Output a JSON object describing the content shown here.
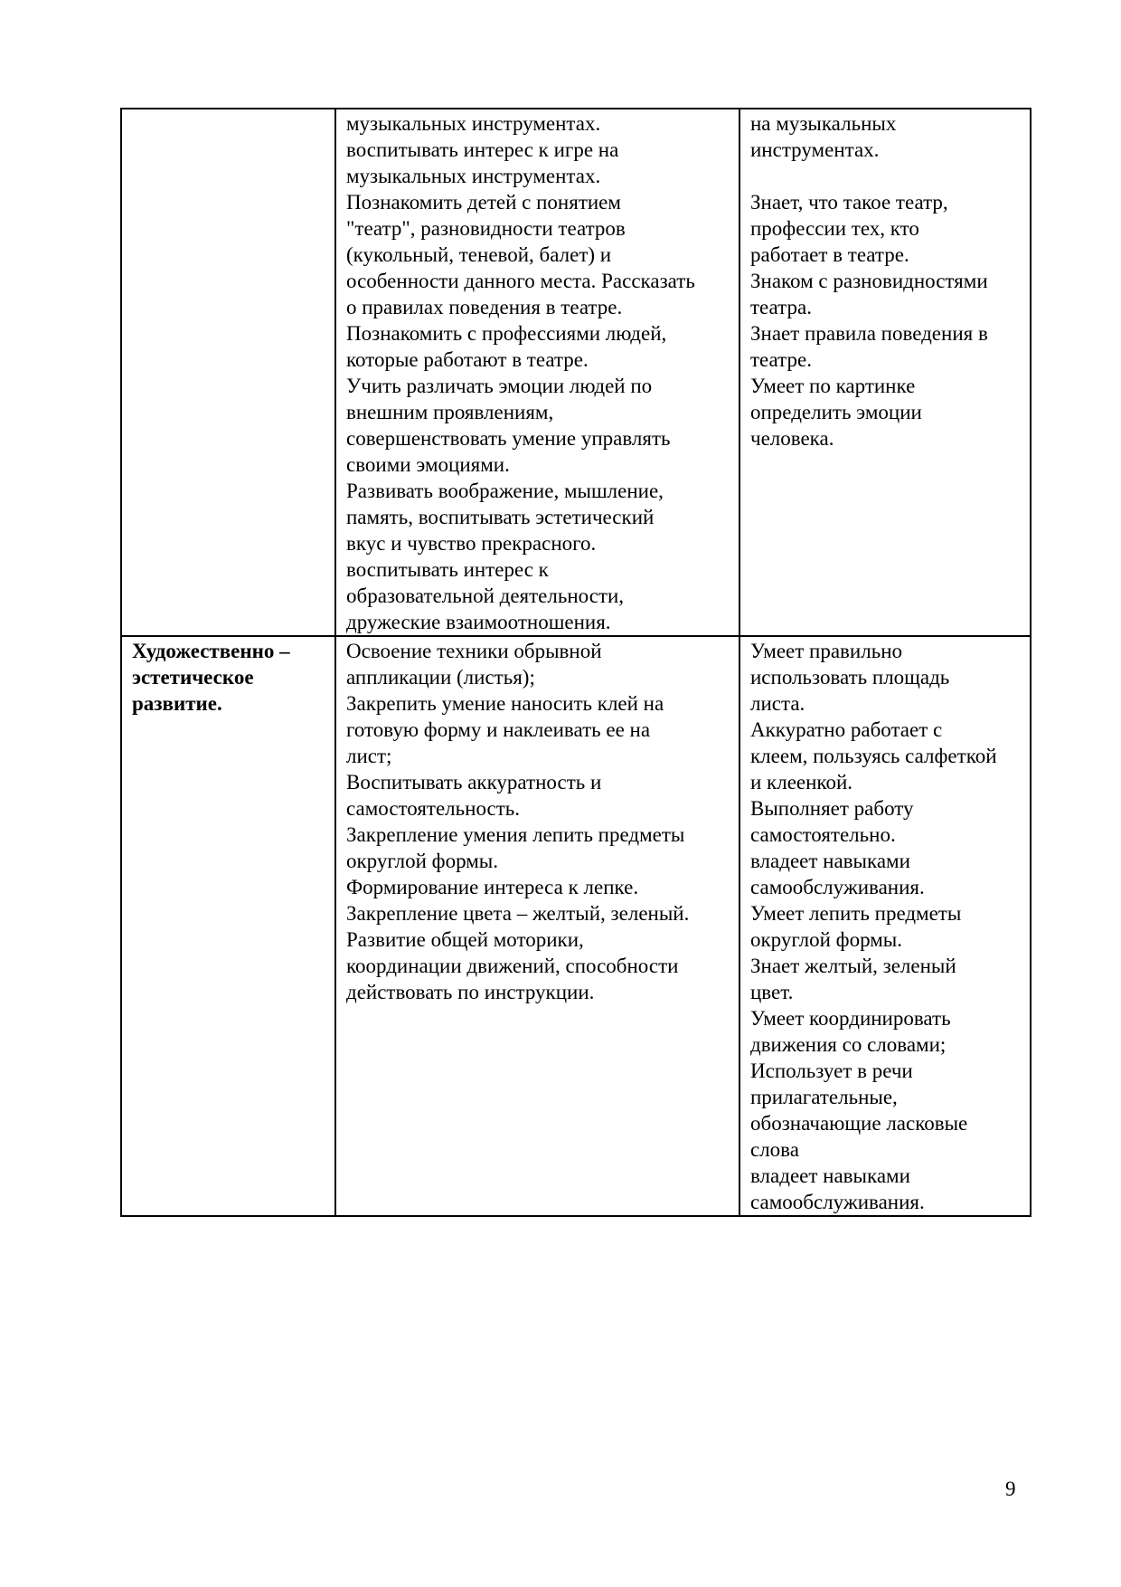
{
  "table": {
    "rows": [
      {
        "area": [],
        "tasks": [
          "музыкальных инструментах.",
          "воспитывать интерес к игре на",
          "музыкальных инструментах.",
          "Познакомить детей с понятием",
          "\"театр\", разновидности театров",
          "(кукольный, теневой, балет) и",
          "особенности данного места.  Рассказать",
          "о правилах поведения в театре.",
          "Познакомить с профессиями людей,",
          "которые работают в театре.",
          "Учить различать эмоции людей по",
          "внешним проявлениям,",
          "совершенствовать умение управлять",
          "своими эмоциями.",
          "Развивать воображение, мышление,",
          "память, воспитывать эстетический",
          "вкус и чувство прекрасного.",
          "воспитывать интерес к",
          "образовательной деятельности,",
          "дружеские взаимоотношения."
        ],
        "results": [
          "на музыкальных",
          "инструментах.",
          "",
          "Знает, что такое театр,",
          "профессии тех, кто",
          "работает в театре.",
          "Знаком с разновидностями",
          "театра.",
          "Знает правила поведения в",
          "театре.",
          "Умеет по картинке",
          "определить эмоции",
          "человека."
        ]
      },
      {
        "area": [
          "Художественно –",
          "эстетическое",
          "развитие."
        ],
        "tasks": [
          "Освоение техники обрывной",
          "аппликации (листья);",
          "Закрепить умение наносить клей на",
          "готовую форму и наклеивать ее на",
          "лист;",
          "Воспитывать аккуратность и",
          "самостоятельность.",
          "Закрепление умения лепить предметы",
          "округлой формы.",
          "Формирование интереса к лепке.",
          "Закрепление цвета – желтый, зеленый.",
          "Развитие общей моторики,",
          "координации движений, способности",
          "действовать по инструкции."
        ],
        "results": [
          "Умеет правильно",
          "использовать площадь",
          "листа.",
          "Аккуратно работает с",
          "клеем, пользуясь салфеткой",
          "и клеенкой.",
          "Выполняет работу",
          "самостоятельно.",
          "владеет навыками",
          "самообслуживания.",
          "Умеет лепить предметы",
          "округлой формы.",
          "Знает желтый, зеленый",
          "цвет.",
          "Умеет координировать",
          "движения со словами;",
          "Использует в речи",
          "прилагательные,",
          "обозначающие ласковые",
          "слова",
          "владеет навыками",
          "самообслуживания."
        ]
      }
    ]
  },
  "page_number": "9"
}
